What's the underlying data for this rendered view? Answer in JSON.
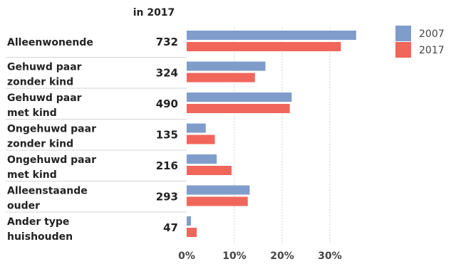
{
  "chart_data": {
    "type": "bar",
    "orientation": "horizontal",
    "count_header": "in 2017",
    "categories": [
      [
        "Alleenwonende"
      ],
      [
        "Gehuwd paar",
        "zonder kind"
      ],
      [
        "Gehuwd paar",
        "met kind"
      ],
      [
        "Ongehuwd paar",
        "zonder kind"
      ],
      [
        "Ongehuwd paar",
        "met kind"
      ],
      [
        "Alleenstaande",
        "ouder"
      ],
      [
        "Ander type",
        "huishouden"
      ]
    ],
    "counts_2017": [
      "732",
      "324",
      "490",
      "135",
      "216",
      "293",
      "47"
    ],
    "series": [
      {
        "name": "2007",
        "color": "#7f9ccb",
        "values": [
          35.5,
          16.5,
          22.0,
          4.0,
          6.3,
          13.2,
          0.9
        ]
      },
      {
        "name": "2017",
        "color": "#f0665b",
        "values": [
          32.3,
          14.3,
          21.6,
          5.9,
          9.4,
          12.8,
          2.1
        ]
      }
    ],
    "xlim": [
      0,
      40
    ],
    "xticks": [
      0,
      10,
      20,
      30
    ],
    "xtick_labels": [
      "0%",
      "10%",
      "20%",
      "30%"
    ],
    "grid": true,
    "legend_position": "top-right"
  }
}
